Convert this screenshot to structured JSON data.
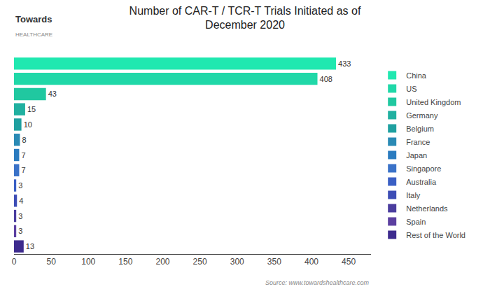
{
  "chart_data": {
    "type": "bar",
    "orientation": "horizontal",
    "title": "Number of CAR-T / TCR-T Trials Initiated as of\nDecember 2020",
    "categories": [
      "Rest of the World",
      "Spain",
      "Netherlands",
      "Italy",
      "Australia",
      "Singapore",
      "Japan",
      "France",
      "Belgium",
      "Germany",
      "United Kingdom",
      "US",
      "China"
    ],
    "values": [
      13,
      3,
      3,
      4,
      3,
      7,
      7,
      8,
      10,
      15,
      43,
      408,
      433
    ],
    "colors": [
      "#3d2b8e",
      "#5b3fa0",
      "#4a3d9e",
      "#3d4db5",
      "#3a5fc4",
      "#3a72c8",
      "#2a7bbf",
      "#2a8ab5",
      "#1fa0a0",
      "#20b0a0",
      "#20c8a0",
      "#20d8a8",
      "#20e8b0"
    ],
    "xlim": [
      0,
      480
    ],
    "xticks": [
      0,
      50,
      100,
      150,
      200,
      250,
      300,
      350,
      400,
      450
    ],
    "data_labels": true,
    "tick_labels": "x",
    "grid": false,
    "legend": "right",
    "annotations": [
      "Towards",
      "HEALTHCARE",
      "Source: www.towardshealthcare.com"
    ]
  }
}
